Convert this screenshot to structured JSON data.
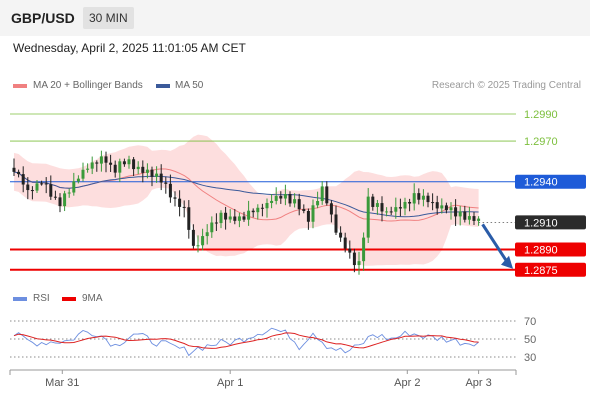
{
  "header": {
    "symbol": "GBP/USD",
    "timeframe": "30 MIN",
    "datetime": "Wednesday, April 2, 2025 11:01:05 AM CET"
  },
  "legend": {
    "ma20_bb": "MA 20 + Bollinger Bands",
    "ma50": "MA 50",
    "credit": "Research © 2025 Trading Central"
  },
  "rsi_legend": {
    "rsi": "RSI",
    "ma9": "9MA"
  },
  "colors": {
    "bull": "#3a9a3a",
    "bear": "#222222",
    "bollinger_fill": "#fcd6d6",
    "ma20": "#f08080",
    "ma50": "#3b5a9a",
    "resistance": "#7cbf3c",
    "pivot": "#1e5bd8",
    "support": "#ee0000",
    "rsi": "#6d8fe0",
    "rsi_ma": "#dd2222",
    "arrow": "#2a5ca8"
  },
  "chart_data": [
    {
      "type": "candlestick",
      "title": "",
      "x_ticks": [
        "Mar 31",
        "Apr 1",
        "Apr 2",
        "Apr 3"
      ],
      "price_levels": [
        {
          "value": 1.299,
          "label": "1.2990",
          "role": "resistance"
        },
        {
          "value": 1.297,
          "label": "1.2970",
          "role": "resistance"
        },
        {
          "value": 1.294,
          "label": "1.2940",
          "role": "pivot"
        },
        {
          "value": 1.291,
          "label": "1.2910",
          "role": "current"
        },
        {
          "value": 1.289,
          "label": "1.2890",
          "role": "support"
        },
        {
          "value": 1.2875,
          "label": "1.2875",
          "role": "support"
        }
      ],
      "anchors": [
        [
          0,
          1.2949
        ],
        [
          3,
          1.2933
        ],
        [
          6,
          1.2939
        ],
        [
          10,
          1.2923
        ],
        [
          13,
          1.294
        ],
        [
          16,
          1.2952
        ],
        [
          19,
          1.2957
        ],
        [
          22,
          1.295
        ],
        [
          25,
          1.2955
        ],
        [
          28,
          1.2948
        ],
        [
          31,
          1.2945
        ],
        [
          34,
          1.293
        ],
        [
          37,
          1.292
        ],
        [
          39,
          1.289
        ],
        [
          42,
          1.2903
        ],
        [
          45,
          1.2914
        ],
        [
          49,
          1.2913
        ],
        [
          52,
          1.2918
        ],
        [
          55,
          1.2924
        ],
        [
          58,
          1.293
        ],
        [
          61,
          1.2926
        ],
        [
          64,
          1.2912
        ],
        [
          67,
          1.2935
        ],
        [
          70,
          1.2905
        ],
        [
          73,
          1.2885
        ],
        [
          75,
          1.2878
        ],
        [
          77,
          1.2926
        ],
        [
          81,
          1.2918
        ],
        [
          84,
          1.2921
        ],
        [
          87,
          1.2929
        ],
        [
          90,
          1.2925
        ],
        [
          93,
          1.2921
        ],
        [
          96,
          1.2916
        ],
        [
          99,
          1.2913
        ],
        [
          101,
          1.291
        ]
      ],
      "ylim": [
        1.2866,
        1.3004
      ]
    },
    {
      "type": "line",
      "title": "",
      "series": [
        {
          "name": "RSI"
        },
        {
          "name": "9MA"
        }
      ],
      "y_ticks": [
        70,
        50,
        30
      ],
      "ylim": [
        20,
        80
      ],
      "rsi_anchors": [
        [
          0,
          55
        ],
        [
          4,
          46
        ],
        [
          8,
          47
        ],
        [
          12,
          48
        ],
        [
          15,
          58
        ],
        [
          18,
          57
        ],
        [
          22,
          43
        ],
        [
          26,
          56
        ],
        [
          30,
          48
        ],
        [
          34,
          42
        ],
        [
          38,
          36
        ],
        [
          40,
          40
        ],
        [
          44,
          45
        ],
        [
          48,
          47
        ],
        [
          52,
          55
        ],
        [
          56,
          62
        ],
        [
          60,
          54
        ],
        [
          62,
          42
        ],
        [
          65,
          58
        ],
        [
          68,
          43
        ],
        [
          72,
          35
        ],
        [
          75,
          42
        ],
        [
          78,
          55
        ],
        [
          82,
          50
        ],
        [
          86,
          57
        ],
        [
          90,
          52
        ],
        [
          94,
          50
        ],
        [
          98,
          46
        ],
        [
          101,
          47
        ]
      ]
    }
  ]
}
